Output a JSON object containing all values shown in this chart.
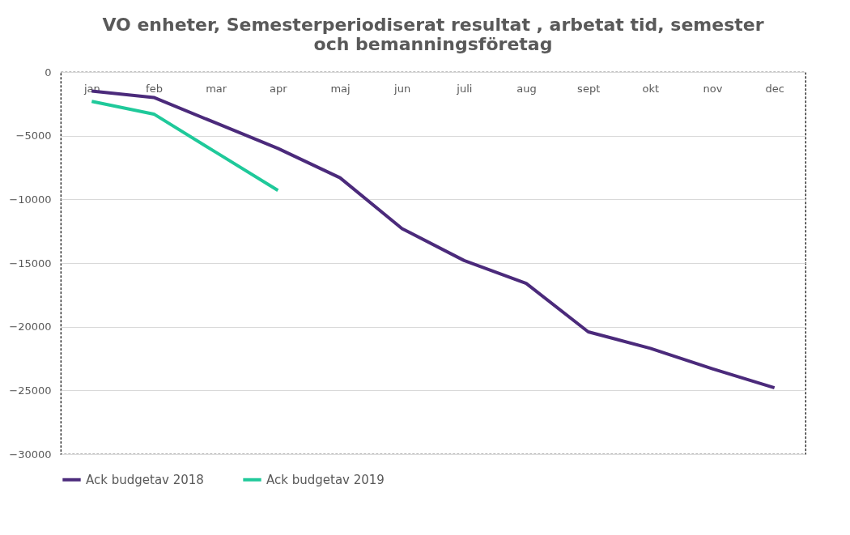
{
  "chart_data": {
    "type": "line",
    "title": [
      "VO enheter, Semesterperiodiserat resultat , arbetat tid, semester",
      "och bemanningsföretag"
    ],
    "categories": [
      "jan",
      "feb",
      "mar",
      "apr",
      "maj",
      "jun",
      "juli",
      "aug",
      "sept",
      "okt",
      "nov",
      "dec"
    ],
    "series": [
      {
        "name": "Ack budgetav 2018",
        "color": "#4b2a7b",
        "values": [
          -1500,
          -2000,
          -4000,
          -6000,
          -8300,
          -12300,
          -14800,
          -16600,
          -20400,
          -21700,
          -23300,
          -24800
        ]
      },
      {
        "name": "Ack budgetav 2019",
        "color": "#1fc99a",
        "values": [
          -2300,
          -3300,
          -6300,
          -9300,
          null,
          null,
          null,
          null,
          null,
          null,
          null,
          null
        ]
      }
    ],
    "ylim": [
      -30000,
      0
    ],
    "yticks": [
      0,
      -5000,
      -10000,
      -15000,
      -20000,
      -25000,
      -30000
    ],
    "grid": "y",
    "legend": "bottom",
    "marker": "none",
    "line_style": "solid"
  }
}
